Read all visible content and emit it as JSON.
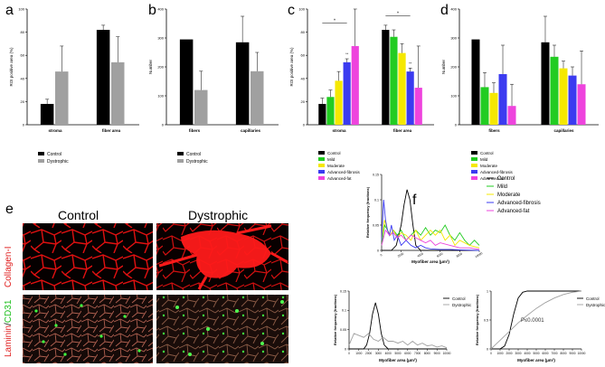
{
  "panel_letters": [
    "a",
    "b",
    "c",
    "d",
    "e",
    "f"
  ],
  "micro": {
    "col_labels": [
      "Control",
      "Dystrophic"
    ],
    "row_labels": [
      "Collagen-I"
    ],
    "row2_parts": [
      "Laminin",
      "/",
      "CD31"
    ]
  },
  "legend_two": [
    "Control",
    "Dystrophic"
  ],
  "legend_five": [
    "Control",
    "Mild",
    "Moderate",
    "Advanced-fibrosis",
    "Advanced-fat"
  ],
  "p_text": "P≤0.0001",
  "colors": {
    "control": "#000000",
    "dystrophic": "#a0a0a0",
    "mild": "#22cc22",
    "moderate": "#f5e800",
    "adv_fibrosis": "#3b3bf0",
    "adv_fat": "#ee44dd"
  },
  "chart_data": [
    {
      "id": "a",
      "type": "bar",
      "categories": [
        "stroma",
        "fiber area"
      ],
      "ylabel": "ROI positive area (%)",
      "ylim": [
        0,
        100
      ],
      "yticks": [
        0,
        20,
        40,
        60,
        80,
        100
      ],
      "series": [
        {
          "name": "Control",
          "values": [
            18,
            82
          ],
          "err": [
            4,
            4
          ]
        },
        {
          "name": "Dystrophic",
          "values": [
            46,
            54
          ],
          "err": [
            22,
            22
          ]
        }
      ]
    },
    {
      "id": "b",
      "type": "bar",
      "categories": [
        "fibers",
        "capillaries"
      ],
      "ylabel": "Number",
      "ylim": [
        0,
        400
      ],
      "yticks": [
        0,
        100,
        200,
        300,
        400
      ],
      "series": [
        {
          "name": "Control",
          "values": [
            295,
            285
          ],
          "err": [
            0,
            90
          ]
        },
        {
          "name": "Dystrophic",
          "values": [
            120,
            185
          ],
          "err": [
            65,
            65
          ]
        }
      ]
    },
    {
      "id": "c",
      "type": "bar",
      "categories": [
        "stroma",
        "fiber area"
      ],
      "ylabel": "ROI positive area (%)",
      "ylim": [
        0,
        100
      ],
      "yticks": [
        0,
        20,
        40,
        60,
        80,
        100
      ],
      "annotations": [
        "*",
        "**",
        "*",
        "**"
      ],
      "series": [
        {
          "name": "Control",
          "values": [
            18,
            82
          ],
          "err": [
            5,
            4
          ]
        },
        {
          "name": "Mild",
          "values": [
            24,
            76
          ],
          "err": [
            6,
            6
          ]
        },
        {
          "name": "Moderate",
          "values": [
            38,
            62
          ],
          "err": [
            8,
            8
          ]
        },
        {
          "name": "Advanced-fibrosis",
          "values": [
            54,
            46
          ],
          "err": [
            3,
            3
          ]
        },
        {
          "name": "Advanced-fat",
          "values": [
            68,
            32
          ],
          "err": [
            36,
            36
          ]
        }
      ]
    },
    {
      "id": "d",
      "type": "bar",
      "categories": [
        "fibers",
        "capillaries"
      ],
      "ylabel": "Number",
      "ylim": [
        0,
        400
      ],
      "yticks": [
        0,
        100,
        200,
        300,
        400
      ],
      "series": [
        {
          "name": "Control",
          "values": [
            295,
            285
          ],
          "err": [
            0,
            90
          ]
        },
        {
          "name": "Mild",
          "values": [
            130,
            235
          ],
          "err": [
            50,
            40
          ]
        },
        {
          "name": "Moderate",
          "values": [
            110,
            195
          ],
          "err": [
            35,
            25
          ]
        },
        {
          "name": "Advanced-fibrosis",
          "values": [
            175,
            170
          ],
          "err": [
            100,
            30
          ]
        },
        {
          "name": "Advanced-fat",
          "values": [
            65,
            140
          ],
          "err": [
            75,
            115
          ]
        }
      ]
    },
    {
      "id": "f1",
      "type": "line",
      "xlabel": "Myofiber area (μm²)",
      "ylabel": "Relative frequency (fractions)",
      "xlim": [
        0,
        10000
      ],
      "xticks": [
        0,
        2000,
        4000,
        6000,
        8000,
        10000
      ],
      "ylim": [
        0,
        0.15
      ],
      "yticks": [
        0,
        0.05,
        0.1,
        0.15
      ],
      "series": [
        {
          "name": "Control",
          "x": [
            0,
            1000,
            1500,
            2000,
            2300,
            2600,
            2900,
            3200,
            3500,
            4000,
            5000,
            10000
          ],
          "y": [
            0,
            0,
            0.01,
            0.05,
            0.09,
            0.12,
            0.1,
            0.05,
            0.01,
            0,
            0,
            0
          ]
        },
        {
          "name": "Mild",
          "x": [
            0,
            300,
            600,
            900,
            1200,
            1600,
            2000,
            2500,
            3000,
            3500,
            4000,
            4500,
            5000,
            5500,
            6000,
            6500,
            7000,
            7500,
            8000,
            8500,
            9000,
            9500,
            10000
          ],
          "y": [
            0.01,
            0.05,
            0.04,
            0.03,
            0.04,
            0.03,
            0.04,
            0.02,
            0.03,
            0.04,
            0.03,
            0.045,
            0.03,
            0.04,
            0.035,
            0.05,
            0.03,
            0.02,
            0.035,
            0.02,
            0.01,
            0.02,
            0.01
          ]
        },
        {
          "name": "Moderate",
          "x": [
            0,
            300,
            600,
            900,
            1200,
            1600,
            2000,
            2500,
            3000,
            3500,
            4000,
            4500,
            5000,
            5500,
            6000,
            6500,
            7000,
            7500,
            8000,
            9000,
            10000
          ],
          "y": [
            0.02,
            0.06,
            0.04,
            0.03,
            0.04,
            0.025,
            0.035,
            0.03,
            0.02,
            0.04,
            0.02,
            0.03,
            0.04,
            0.03,
            0.04,
            0.02,
            0.03,
            0.01,
            0.02,
            0.01,
            0.005
          ]
        },
        {
          "name": "Advanced-fibrosis",
          "x": [
            0,
            200,
            400,
            600,
            800,
            1000,
            1300,
            1600,
            2000,
            2500,
            3000,
            3500,
            4000,
            4500,
            5000,
            6000,
            7000,
            8000,
            10000
          ],
          "y": [
            0.02,
            0.1,
            0.06,
            0.04,
            0.03,
            0.05,
            0.02,
            0.03,
            0.01,
            0.02,
            0.01,
            0.005,
            0.01,
            0.005,
            0.003,
            0.002,
            0.002,
            0.001,
            0
          ]
        },
        {
          "name": "Advanced-fat",
          "x": [
            0,
            400,
            800,
            1200,
            1600,
            2000,
            2500,
            3000,
            3500,
            4000,
            4500,
            5000,
            5500,
            6000,
            7000,
            8000,
            9000,
            10000
          ],
          "y": [
            0.01,
            0.04,
            0.03,
            0.035,
            0.025,
            0.03,
            0.02,
            0.03,
            0.025,
            0.02,
            0.015,
            0.02,
            0.01,
            0.015,
            0.01,
            0.005,
            0.005,
            0.002
          ]
        }
      ]
    },
    {
      "id": "f2",
      "type": "line",
      "xlabel": "Myofiber area (μm²)",
      "ylabel": "Relative frequency (fractions)",
      "xlim": [
        0,
        10000
      ],
      "xticks": [
        0,
        1000,
        2000,
        3000,
        4000,
        5000,
        6000,
        7000,
        8000,
        9000,
        10000
      ],
      "ylim": [
        0,
        0.15
      ],
      "yticks": [
        0,
        0.05,
        0.1,
        0.15
      ],
      "series": [
        {
          "name": "Control",
          "x": [
            0,
            1500,
            1800,
            2100,
            2400,
            2700,
            3000,
            3300,
            3600,
            4000,
            10000
          ],
          "y": [
            0,
            0,
            0.01,
            0.04,
            0.09,
            0.12,
            0.09,
            0.04,
            0.01,
            0,
            0
          ]
        },
        {
          "name": "Dystrophic",
          "x": [
            0,
            500,
            1000,
            1500,
            2000,
            2500,
            3000,
            3500,
            4000,
            4500,
            5000,
            5500,
            6000,
            6500,
            7000,
            7500,
            8000,
            8500,
            9000,
            9500,
            10000
          ],
          "y": [
            0.01,
            0.04,
            0.035,
            0.03,
            0.04,
            0.025,
            0.02,
            0.03,
            0.02,
            0.02,
            0.015,
            0.02,
            0.01,
            0.02,
            0.01,
            0.015,
            0.008,
            0.01,
            0.005,
            0.008,
            0.003
          ]
        }
      ]
    },
    {
      "id": "f3",
      "type": "line",
      "xlabel": "Myofiber area (μm²)",
      "ylabel": "Relative frequency (fractions)",
      "xlim": [
        0,
        10000
      ],
      "xticks": [
        0,
        1000,
        2000,
        3000,
        4000,
        5000,
        6000,
        7000,
        8000,
        9000,
        10000
      ],
      "ylim": [
        0,
        1.0
      ],
      "yticks": [
        0,
        0.5,
        1.0
      ],
      "annotation": "P≤0.0001",
      "series": [
        {
          "name": "Control",
          "x": [
            0,
            1000,
            1500,
            2000,
            2500,
            3000,
            3500,
            4000,
            5000,
            10000
          ],
          "y": [
            0,
            0,
            0.05,
            0.25,
            0.6,
            0.88,
            0.98,
            1,
            1,
            1
          ]
        },
        {
          "name": "Dystrophic",
          "x": [
            0,
            1000,
            2000,
            3000,
            4000,
            5000,
            6000,
            7000,
            8000,
            9000,
            10000
          ],
          "y": [
            0,
            0.15,
            0.3,
            0.45,
            0.58,
            0.7,
            0.8,
            0.88,
            0.94,
            0.98,
            1
          ]
        }
      ]
    }
  ]
}
